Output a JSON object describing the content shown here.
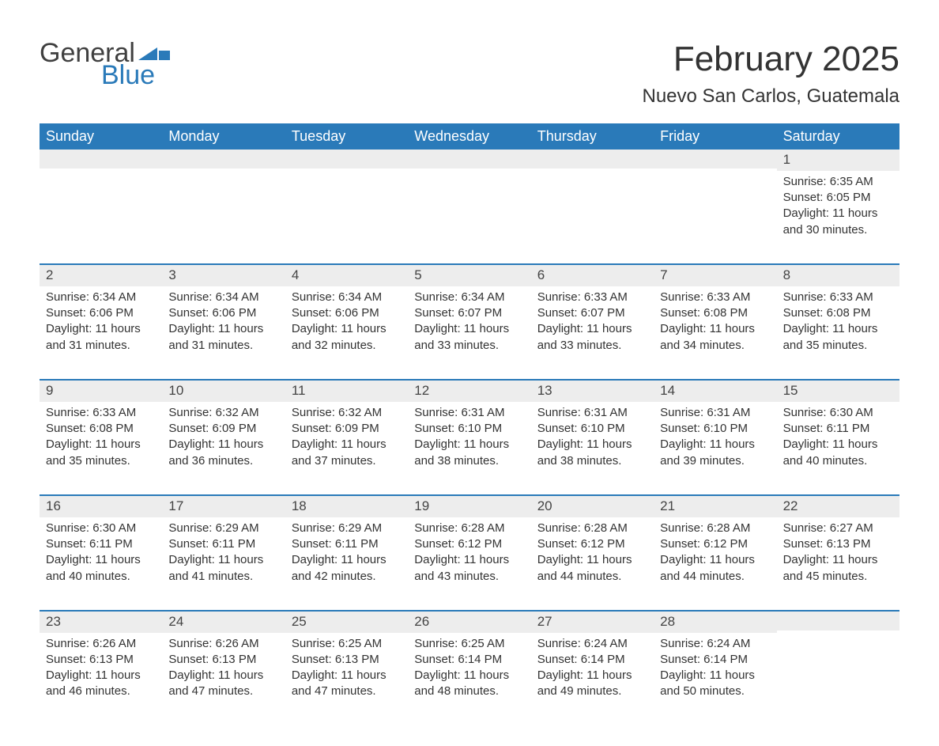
{
  "logo": {
    "text_general": "General",
    "text_blue": "Blue",
    "shape_color": "#2a7ab9",
    "general_color": "#404040"
  },
  "title": "February 2025",
  "location": "Nuevo San Carlos, Guatemala",
  "colors": {
    "header_bg": "#2a7ab9",
    "header_text": "#ffffff",
    "daynum_bg": "#ededed",
    "border": "#2a7ab9",
    "text": "#333333",
    "background": "#ffffff"
  },
  "day_labels": [
    "Sunday",
    "Monday",
    "Tuesday",
    "Wednesday",
    "Thursday",
    "Friday",
    "Saturday"
  ],
  "weeks": [
    [
      {
        "empty": true
      },
      {
        "empty": true
      },
      {
        "empty": true
      },
      {
        "empty": true
      },
      {
        "empty": true
      },
      {
        "empty": true
      },
      {
        "day": "1",
        "sunrise": "Sunrise: 6:35 AM",
        "sunset": "Sunset: 6:05 PM",
        "daylight": "Daylight: 11 hours and 30 minutes."
      }
    ],
    [
      {
        "day": "2",
        "sunrise": "Sunrise: 6:34 AM",
        "sunset": "Sunset: 6:06 PM",
        "daylight": "Daylight: 11 hours and 31 minutes."
      },
      {
        "day": "3",
        "sunrise": "Sunrise: 6:34 AM",
        "sunset": "Sunset: 6:06 PM",
        "daylight": "Daylight: 11 hours and 31 minutes."
      },
      {
        "day": "4",
        "sunrise": "Sunrise: 6:34 AM",
        "sunset": "Sunset: 6:06 PM",
        "daylight": "Daylight: 11 hours and 32 minutes."
      },
      {
        "day": "5",
        "sunrise": "Sunrise: 6:34 AM",
        "sunset": "Sunset: 6:07 PM",
        "daylight": "Daylight: 11 hours and 33 minutes."
      },
      {
        "day": "6",
        "sunrise": "Sunrise: 6:33 AM",
        "sunset": "Sunset: 6:07 PM",
        "daylight": "Daylight: 11 hours and 33 minutes."
      },
      {
        "day": "7",
        "sunrise": "Sunrise: 6:33 AM",
        "sunset": "Sunset: 6:08 PM",
        "daylight": "Daylight: 11 hours and 34 minutes."
      },
      {
        "day": "8",
        "sunrise": "Sunrise: 6:33 AM",
        "sunset": "Sunset: 6:08 PM",
        "daylight": "Daylight: 11 hours and 35 minutes."
      }
    ],
    [
      {
        "day": "9",
        "sunrise": "Sunrise: 6:33 AM",
        "sunset": "Sunset: 6:08 PM",
        "daylight": "Daylight: 11 hours and 35 minutes."
      },
      {
        "day": "10",
        "sunrise": "Sunrise: 6:32 AM",
        "sunset": "Sunset: 6:09 PM",
        "daylight": "Daylight: 11 hours and 36 minutes."
      },
      {
        "day": "11",
        "sunrise": "Sunrise: 6:32 AM",
        "sunset": "Sunset: 6:09 PM",
        "daylight": "Daylight: 11 hours and 37 minutes."
      },
      {
        "day": "12",
        "sunrise": "Sunrise: 6:31 AM",
        "sunset": "Sunset: 6:10 PM",
        "daylight": "Daylight: 11 hours and 38 minutes."
      },
      {
        "day": "13",
        "sunrise": "Sunrise: 6:31 AM",
        "sunset": "Sunset: 6:10 PM",
        "daylight": "Daylight: 11 hours and 38 minutes."
      },
      {
        "day": "14",
        "sunrise": "Sunrise: 6:31 AM",
        "sunset": "Sunset: 6:10 PM",
        "daylight": "Daylight: 11 hours and 39 minutes."
      },
      {
        "day": "15",
        "sunrise": "Sunrise: 6:30 AM",
        "sunset": "Sunset: 6:11 PM",
        "daylight": "Daylight: 11 hours and 40 minutes."
      }
    ],
    [
      {
        "day": "16",
        "sunrise": "Sunrise: 6:30 AM",
        "sunset": "Sunset: 6:11 PM",
        "daylight": "Daylight: 11 hours and 40 minutes."
      },
      {
        "day": "17",
        "sunrise": "Sunrise: 6:29 AM",
        "sunset": "Sunset: 6:11 PM",
        "daylight": "Daylight: 11 hours and 41 minutes."
      },
      {
        "day": "18",
        "sunrise": "Sunrise: 6:29 AM",
        "sunset": "Sunset: 6:11 PM",
        "daylight": "Daylight: 11 hours and 42 minutes."
      },
      {
        "day": "19",
        "sunrise": "Sunrise: 6:28 AM",
        "sunset": "Sunset: 6:12 PM",
        "daylight": "Daylight: 11 hours and 43 minutes."
      },
      {
        "day": "20",
        "sunrise": "Sunrise: 6:28 AM",
        "sunset": "Sunset: 6:12 PM",
        "daylight": "Daylight: 11 hours and 44 minutes."
      },
      {
        "day": "21",
        "sunrise": "Sunrise: 6:28 AM",
        "sunset": "Sunset: 6:12 PM",
        "daylight": "Daylight: 11 hours and 44 minutes."
      },
      {
        "day": "22",
        "sunrise": "Sunrise: 6:27 AM",
        "sunset": "Sunset: 6:13 PM",
        "daylight": "Daylight: 11 hours and 45 minutes."
      }
    ],
    [
      {
        "day": "23",
        "sunrise": "Sunrise: 6:26 AM",
        "sunset": "Sunset: 6:13 PM",
        "daylight": "Daylight: 11 hours and 46 minutes."
      },
      {
        "day": "24",
        "sunrise": "Sunrise: 6:26 AM",
        "sunset": "Sunset: 6:13 PM",
        "daylight": "Daylight: 11 hours and 47 minutes."
      },
      {
        "day": "25",
        "sunrise": "Sunrise: 6:25 AM",
        "sunset": "Sunset: 6:13 PM",
        "daylight": "Daylight: 11 hours and 47 minutes."
      },
      {
        "day": "26",
        "sunrise": "Sunrise: 6:25 AM",
        "sunset": "Sunset: 6:14 PM",
        "daylight": "Daylight: 11 hours and 48 minutes."
      },
      {
        "day": "27",
        "sunrise": "Sunrise: 6:24 AM",
        "sunset": "Sunset: 6:14 PM",
        "daylight": "Daylight: 11 hours and 49 minutes."
      },
      {
        "day": "28",
        "sunrise": "Sunrise: 6:24 AM",
        "sunset": "Sunset: 6:14 PM",
        "daylight": "Daylight: 11 hours and 50 minutes."
      },
      {
        "empty": true
      }
    ]
  ]
}
